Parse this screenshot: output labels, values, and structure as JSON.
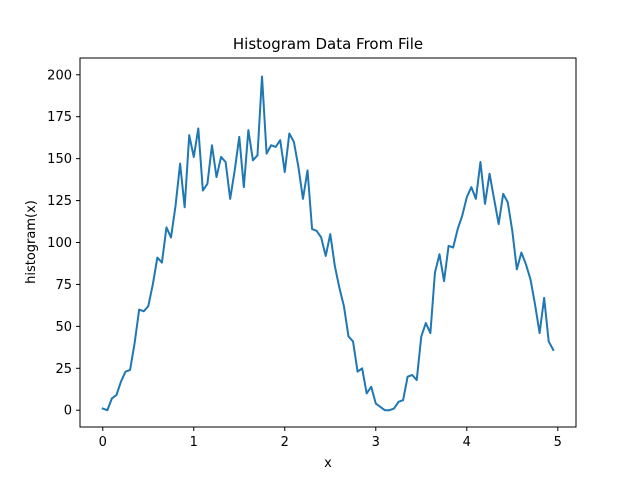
{
  "chart_data": {
    "type": "line",
    "title": "Histogram Data From File",
    "xlabel": "x",
    "ylabel": "histogram(x)",
    "xlim": [
      -0.25,
      5.2
    ],
    "ylim": [
      -10,
      210
    ],
    "xticks": [
      0,
      1,
      2,
      3,
      4,
      5
    ],
    "yticks": [
      0,
      25,
      50,
      75,
      100,
      125,
      150,
      175,
      200
    ],
    "grid": false,
    "color": "#1f77b4",
    "series": [
      {
        "x_start": 0,
        "x_step": 0.05,
        "values": [
          1,
          0,
          7,
          9,
          17,
          23,
          24,
          40,
          60,
          59,
          62,
          75,
          91,
          88,
          109,
          103,
          122,
          147,
          121,
          164,
          151,
          168,
          131,
          135,
          158,
          139,
          151,
          148,
          126,
          143,
          163,
          133,
          167,
          149,
          152,
          199,
          153,
          158,
          157,
          161,
          142,
          165,
          160,
          145,
          126,
          143,
          108,
          107,
          103,
          92,
          105,
          86,
          73,
          62,
          44,
          41,
          23,
          25,
          10,
          14,
          4,
          2,
          0,
          0,
          1,
          5,
          6,
          20,
          21,
          18,
          44,
          52,
          46,
          82,
          93,
          77,
          98,
          97,
          108,
          116,
          127,
          133,
          126,
          148,
          123,
          141,
          126,
          111,
          129,
          124,
          107,
          84,
          94,
          87,
          78,
          63,
          46,
          67,
          41,
          36
        ]
      }
    ]
  }
}
